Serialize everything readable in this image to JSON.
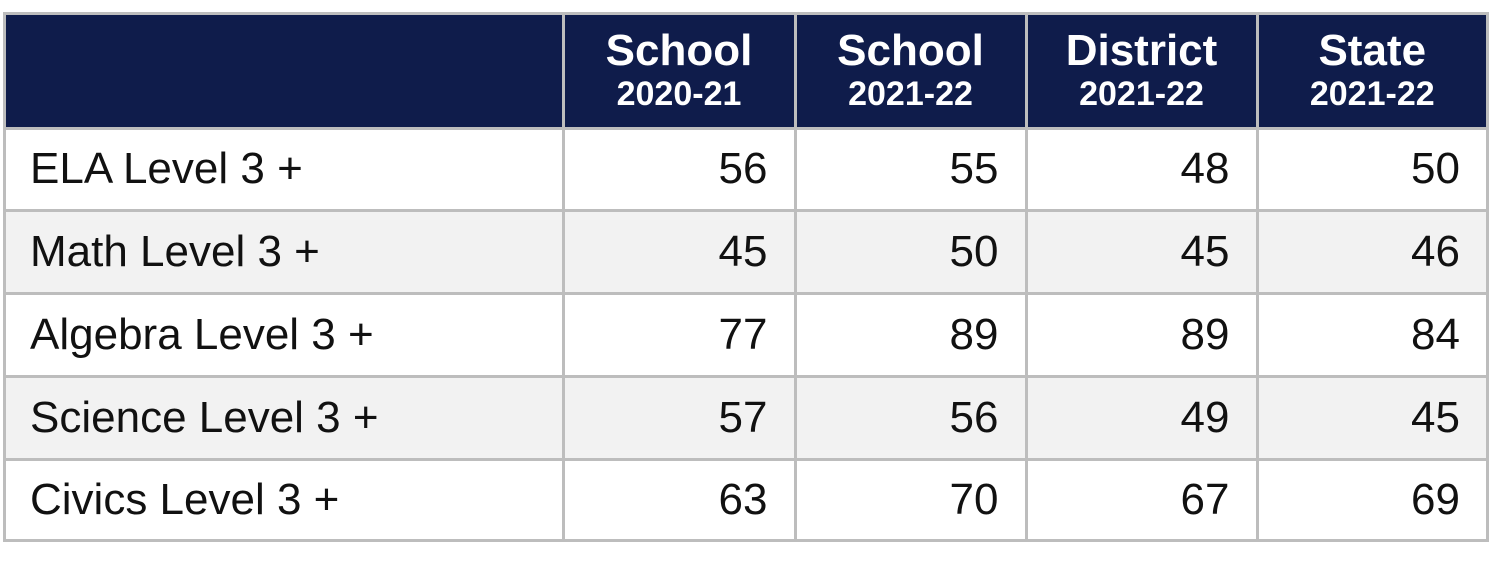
{
  "table": {
    "columns": [
      {
        "title": "School",
        "period": "2020-21"
      },
      {
        "title": "School",
        "period": "2021-22"
      },
      {
        "title": "District",
        "period": "2021-22"
      },
      {
        "title": "State",
        "period": "2021-22"
      }
    ],
    "rows": [
      {
        "label": "ELA Level 3 +",
        "values": [
          56,
          55,
          48,
          50
        ]
      },
      {
        "label": "Math Level 3 +",
        "values": [
          45,
          50,
          45,
          46
        ]
      },
      {
        "label": "Algebra Level 3 +",
        "values": [
          77,
          89,
          89,
          84
        ]
      },
      {
        "label": "Science Level 3 +",
        "values": [
          57,
          56,
          49,
          45
        ]
      },
      {
        "label": "Civics Level 3 +",
        "values": [
          63,
          70,
          67,
          69
        ]
      }
    ]
  }
}
